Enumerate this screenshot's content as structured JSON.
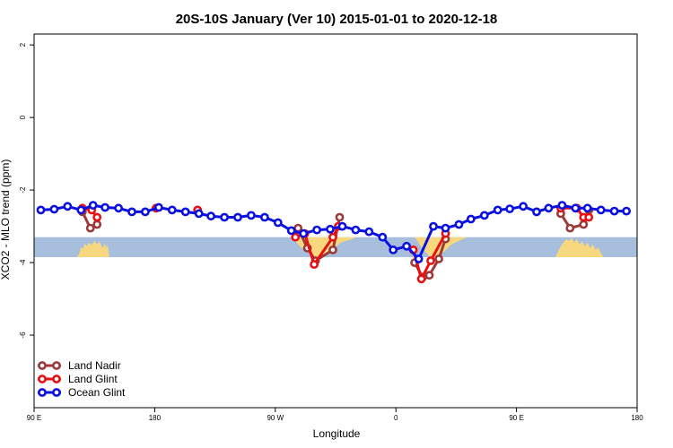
{
  "chart_data": {
    "type": "line",
    "title": "20S-10S January (Ver 10)   2015-01-01 to 2020-12-18",
    "xlabel": "Longitude",
    "ylabel": "XCO2 - MLO trend (ppm)",
    "xlim": [
      90,
      540
    ],
    "ylim": [
      -8,
      2.3
    ],
    "xticks": [
      {
        "value": 90,
        "label": "90 E"
      },
      {
        "value": 180,
        "label": "180"
      },
      {
        "value": 270,
        "label": "90 W"
      },
      {
        "value": 360,
        "label": "0"
      },
      {
        "value": 450,
        "label": "90 E"
      },
      {
        "value": 540,
        "label": "180"
      }
    ],
    "yticks": [
      {
        "value": 2,
        "label": "2"
      },
      {
        "value": 0,
        "label": "0"
      },
      {
        "value": -2,
        "label": "-2"
      },
      {
        "value": -4,
        "label": "-4"
      },
      {
        "value": -6,
        "label": "-6"
      }
    ],
    "band": {
      "ymin": -3.85,
      "ymax": -3.3,
      "color": "#a8bedd"
    },
    "land_color": "#f7d87e",
    "land_patches": [
      {
        "x": [
          122,
          124,
          125,
          126.5,
          128,
          129.5,
          131,
          133,
          135,
          137,
          139,
          141,
          143,
          144,
          145,
          145.5,
          146,
          146
        ],
        "y": [
          -3.85,
          -3.72,
          -3.58,
          -3.62,
          -3.48,
          -3.55,
          -3.45,
          -3.52,
          -3.4,
          -3.5,
          -3.42,
          -3.6,
          -3.48,
          -3.6,
          -3.5,
          -3.7,
          -3.8,
          -3.85
        ]
      },
      {
        "x": [
          283,
          285,
          287,
          289,
          291,
          293,
          295,
          297,
          299,
          301,
          303,
          305,
          307,
          309,
          311,
          313,
          315,
          317,
          319,
          321,
          323,
          325,
          327,
          329,
          330
        ],
        "y": [
          -3.3,
          -3.4,
          -3.5,
          -3.58,
          -3.62,
          -3.66,
          -3.72,
          -3.78,
          -3.82,
          -3.85,
          -3.85,
          -3.84,
          -3.8,
          -3.74,
          -3.68,
          -3.62,
          -3.56,
          -3.5,
          -3.45,
          -3.42,
          -3.4,
          -3.38,
          -3.35,
          -3.32,
          -3.3
        ]
      },
      {
        "x": [
          374,
          376,
          378,
          380,
          382,
          384,
          386,
          388,
          390,
          392,
          394,
          396,
          398,
          400,
          402,
          404,
          406,
          408,
          410,
          412,
          413
        ],
        "y": [
          -3.3,
          -3.4,
          -3.52,
          -3.62,
          -3.7,
          -3.78,
          -3.84,
          -3.85,
          -3.85,
          -3.82,
          -3.76,
          -3.7,
          -3.62,
          -3.55,
          -3.5,
          -3.45,
          -3.42,
          -3.38,
          -3.35,
          -3.32,
          -3.3
        ]
      },
      {
        "x": [
          479,
          481,
          483,
          485,
          487,
          489,
          491,
          493,
          495,
          497,
          499,
          501,
          503,
          505,
          507,
          509,
          511,
          513,
          515
        ],
        "y": [
          -3.85,
          -3.7,
          -3.55,
          -3.45,
          -3.35,
          -3.4,
          -3.32,
          -3.45,
          -3.35,
          -3.5,
          -3.42,
          -3.55,
          -3.45,
          -3.6,
          -3.5,
          -3.65,
          -3.58,
          -3.75,
          -3.85
        ]
      }
    ],
    "legend": {
      "position": "bottom-left"
    },
    "series": [
      {
        "name": "Land Nadir",
        "color": "#9b3a3a",
        "segments": [
          {
            "x": [
              126,
              132,
              137
            ],
            "y": [
              -2.6,
              -3.05,
              -2.95
            ]
          },
          {
            "x": [
              287,
              294,
              300,
              313,
              318
            ],
            "y": [
              -3.05,
              -3.6,
              -3.95,
              -3.65,
              -2.75
            ]
          },
          {
            "x": [
              374,
              380,
              385,
              392,
              397
            ],
            "y": [
              -4.0,
              -4.4,
              -4.35,
              -3.9,
              -3.35
            ]
          },
          {
            "x": [
              483,
              490,
              500,
              504
            ],
            "y": [
              -2.65,
              -3.05,
              -2.95,
              -2.55
            ]
          }
        ]
      },
      {
        "name": "Land Glint",
        "color": "#e81010",
        "segments": [
          {
            "x": [
              126,
              133,
              137
            ],
            "y": [
              -2.5,
              -2.55,
              -2.75
            ]
          },
          {
            "x": [
              181
            ],
            "y": [
              -2.5
            ]
          },
          {
            "x": [
              212
            ],
            "y": [
              -2.55
            ]
          },
          {
            "x": [
              285,
              292,
              299,
              313,
              317
            ],
            "y": [
              -3.3,
              -3.2,
              -4.05,
              -3.3,
              -3.0
            ]
          },
          {
            "x": [
              373,
              379,
              386,
              397
            ],
            "y": [
              -3.65,
              -4.45,
              -3.95,
              -3.2
            ]
          },
          {
            "x": [
              483,
              495,
              500,
              504
            ],
            "y": [
              -2.5,
              -2.5,
              -2.75,
              -2.75
            ]
          }
        ]
      },
      {
        "name": "Ocean Glint",
        "color": "#0a10e0",
        "segments": [
          {
            "x": [
              95,
              105,
              115,
              125,
              134,
              143,
              153,
              163,
              173,
              183,
              193,
              203,
              213,
              222,
              232,
              242,
              252,
              262,
              272,
              282,
              291,
              301,
              311,
              320,
              330,
              340,
              350,
              358,
              368,
              377,
              388,
              397,
              407,
              416,
              426,
              436,
              445,
              455,
              465,
              474,
              484,
              494,
              503,
              513,
              523,
              532
            ],
            "y": [
              -2.55,
              -2.53,
              -2.45,
              -2.55,
              -2.42,
              -2.48,
              -2.5,
              -2.6,
              -2.6,
              -2.48,
              -2.55,
              -2.6,
              -2.65,
              -2.72,
              -2.75,
              -2.75,
              -2.7,
              -2.75,
              -2.9,
              -3.12,
              -3.2,
              -3.1,
              -3.08,
              -3.0,
              -3.1,
              -3.15,
              -3.3,
              -3.65,
              -3.55,
              -3.9,
              -3.0,
              -3.05,
              -2.95,
              -2.8,
              -2.7,
              -2.55,
              -2.52,
              -2.45,
              -2.6,
              -2.5,
              -2.42,
              -2.5,
              -2.5,
              -2.55,
              -2.58,
              -2.58
            ]
          }
        ]
      }
    ]
  }
}
